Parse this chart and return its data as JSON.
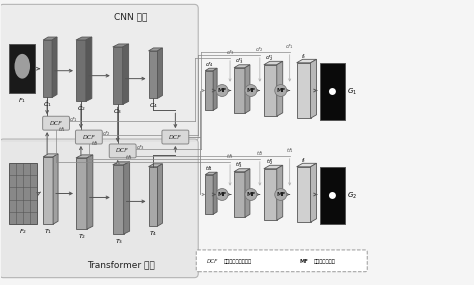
{
  "bg_color": "#f5f5f5",
  "cnn_label": "CNN 分支",
  "transformer_label": "Transformer 分支",
  "legend_dcf_text": "双分支交叉融合模块",
  "legend_mf_text": "跨尺度融合模块",
  "cnn_bg": "#eeeeee",
  "tf_bg": "#e8e8e8",
  "f1_color": "#111111",
  "f2_bg": "#cccccc",
  "c1_color": "#808080",
  "c2_color": "#707070",
  "c3_color": "#707070",
  "c4_color": "#909090",
  "t1_color": "#bbbbbb",
  "t2_color": "#aaaaaa",
  "t3_color": "#999999",
  "t4_color": "#aaaaaa",
  "dcf_bg": "#d8d8d8",
  "mf_color": "#aaaaaa",
  "upper_box1": "#b0b0b0",
  "upper_box2": "#c0c0c0",
  "upper_box3": "#d0d0d0",
  "upper_box4": "#d8d8d8",
  "lower_box1": "#b0b0b0",
  "lower_box2": "#c0c0c0",
  "lower_box3": "#d0d0d0",
  "lower_box4": "#d8d8d8",
  "out_bg": "#111111",
  "arrow_col": "#555555",
  "light_arrow": "#999999"
}
